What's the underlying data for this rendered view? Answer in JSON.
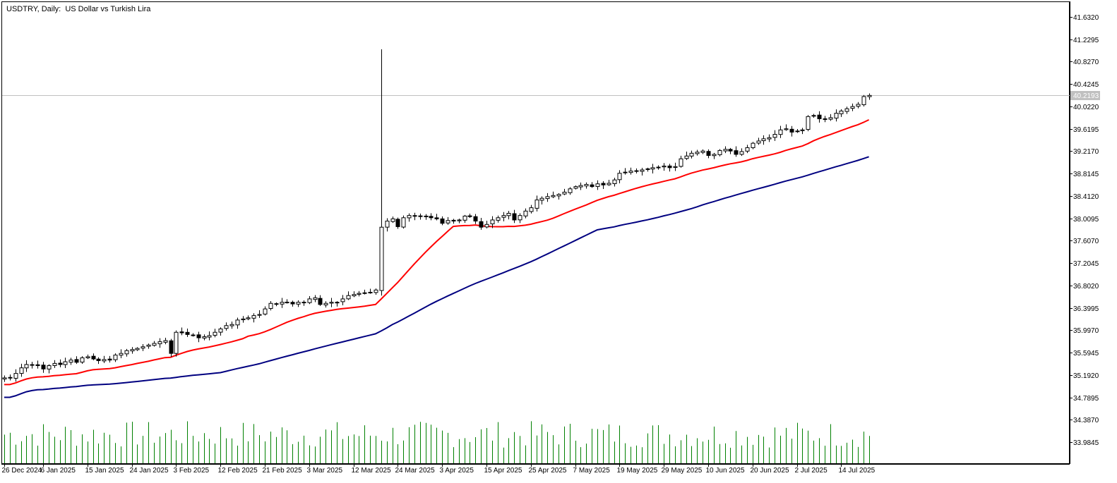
{
  "window": {
    "symbol": "USDTRY",
    "timeframe": "Daily",
    "description": "US Dollar vs Turkish Lira",
    "title": "USDTRY, Daily:  US Dollar vs Turkish Lira"
  },
  "colors": {
    "background": "#ffffff",
    "candle": "#000000",
    "ma_fast": "#ff0000",
    "ma_slow": "#000080",
    "volume": "#008000",
    "bid_line": "#c0c0c0",
    "bid_label_bg": "#c0c0c0"
  },
  "chart_data": {
    "type": "candlestick",
    "grid": false,
    "y_axis_ticks": [
      "41.6320",
      "41.2295",
      "40.8270",
      "40.4245",
      "40.0220",
      "39.6195",
      "39.2170",
      "38.8145",
      "38.4120",
      "38.0095",
      "37.6070",
      "37.2045",
      "36.8020",
      "36.3995",
      "35.9970",
      "35.5945",
      "35.1920",
      "34.7895",
      "34.3870",
      "33.9845"
    ],
    "ylim": [
      33.86,
      41.8
    ],
    "current_price": "40.2193",
    "x_axis_labels": [
      "26 Dec 2024",
      "6 Jan 2025",
      "15 Jan 2025",
      "24 Jan 2025",
      "3 Feb 2025",
      "12 Feb 2025",
      "21 Feb 2025",
      "3 Mar 2025",
      "12 Mar 2025",
      "24 Mar 2025",
      "3 Apr 2025",
      "15 Apr 2025",
      "25 Apr 2025",
      "7 May 2025",
      "19 May 2025",
      "29 May 2025",
      "10 Jun 2025",
      "20 Jun 2025",
      "2 Jul 2025",
      "14 Jul 2025"
    ],
    "x_label_bar_index": [
      0,
      7,
      15,
      23,
      31,
      39,
      47,
      55,
      63,
      71,
      79,
      87,
      95,
      103,
      111,
      119,
      127,
      135,
      143,
      151
    ],
    "close": [
      35.14,
      35.14,
      35.22,
      35.32,
      35.38,
      35.37,
      35.36,
      35.3,
      35.36,
      35.4,
      35.38,
      35.43,
      35.46,
      35.42,
      35.5,
      35.52,
      35.48,
      35.45,
      35.47,
      35.46,
      35.55,
      35.58,
      35.63,
      35.65,
      35.67,
      35.7,
      35.73,
      35.76,
      35.79,
      35.81,
      35.58,
      35.96,
      35.95,
      35.92,
      35.91,
      35.86,
      35.88,
      35.9,
      35.96,
      36.02,
      36.08,
      36.1,
      36.18,
      36.2,
      36.22,
      36.26,
      36.28,
      36.38,
      36.48,
      36.47,
      36.5,
      36.5,
      36.47,
      36.5,
      36.49,
      36.56,
      36.58,
      36.46,
      36.48,
      36.5,
      36.5,
      36.56,
      36.62,
      36.64,
      36.66,
      36.67,
      36.68,
      36.72,
      37.85,
      37.96,
      38.0,
      37.86,
      38.02,
      38.06,
      38.05,
      38.05,
      38.05,
      38.02,
      38.0,
      37.92,
      37.97,
      37.96,
      37.98,
      38.05,
      38.04,
      37.96,
      37.85,
      37.9,
      37.98,
      38.02,
      38.06,
      38.1,
      37.98,
      38.06,
      38.14,
      38.2,
      38.34,
      38.37,
      38.4,
      38.42,
      38.44,
      38.48,
      38.54,
      38.58,
      38.6,
      38.62,
      38.58,
      38.63,
      38.61,
      38.64,
      38.7,
      38.82,
      38.84,
      38.86,
      38.86,
      38.88,
      38.9,
      38.92,
      38.93,
      38.95,
      38.92,
      38.94,
      39.08,
      39.13,
      39.18,
      39.2,
      39.22,
      39.14,
      39.16,
      39.23,
      39.25,
      39.22,
      39.16,
      39.21,
      39.28,
      39.36,
      39.4,
      39.44,
      39.46,
      39.52,
      39.6,
      39.62,
      39.56,
      39.58,
      39.6,
      39.84,
      39.86,
      39.8,
      39.8,
      39.82,
      39.9,
      39.94,
      39.98,
      40.02,
      40.06,
      40.2,
      40.22
    ],
    "ma_fast_label": "",
    "ma_slow_label": ""
  }
}
